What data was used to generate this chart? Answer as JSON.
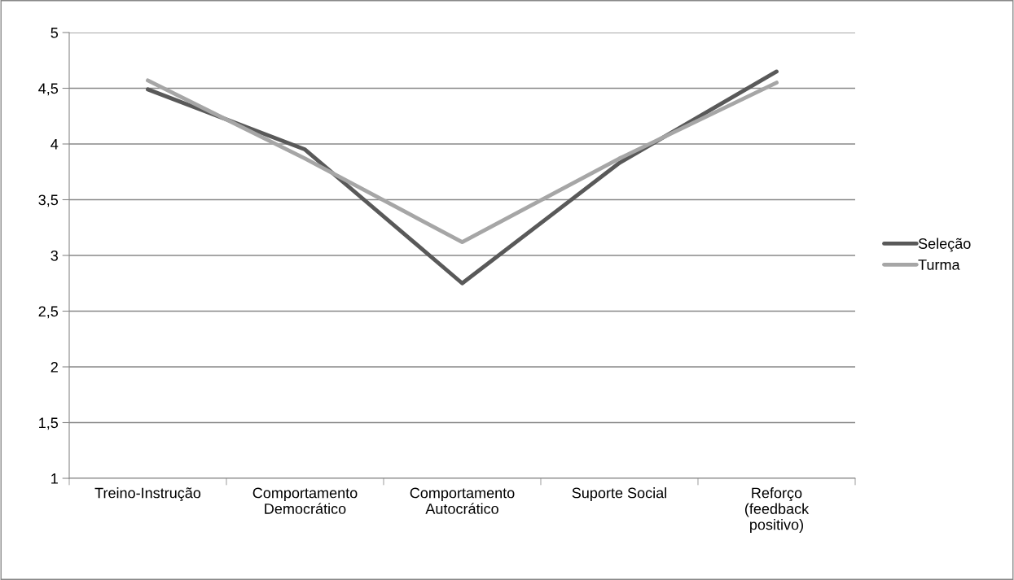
{
  "chart_data": {
    "type": "line",
    "categories": [
      "Treino-Instrução",
      "Comportamento\nDemocrático",
      "Comportamento\nAutocrático",
      "Suporte Social",
      "Reforço\n(feedback\npositivo)"
    ],
    "series": [
      {
        "name": "Seleção",
        "color": "#595959",
        "values": [
          4.49,
          3.95,
          2.75,
          3.83,
          4.65
        ]
      },
      {
        "name": "Turma",
        "color": "#a6a6a6",
        "values": [
          4.57,
          3.87,
          3.12,
          3.87,
          4.55
        ]
      }
    ],
    "ylim": [
      1,
      5
    ],
    "yticks": [
      1,
      {
        "value": 1.5,
        "label": "1,5"
      },
      2,
      {
        "value": 2.5,
        "label": "2,5"
      },
      3,
      {
        "value": 3.5,
        "label": "3,5"
      },
      4,
      {
        "value": 4.5,
        "label": "4,5"
      },
      5
    ],
    "grid": "y",
    "legend": "right",
    "marker": "none",
    "line_style": "solid"
  }
}
